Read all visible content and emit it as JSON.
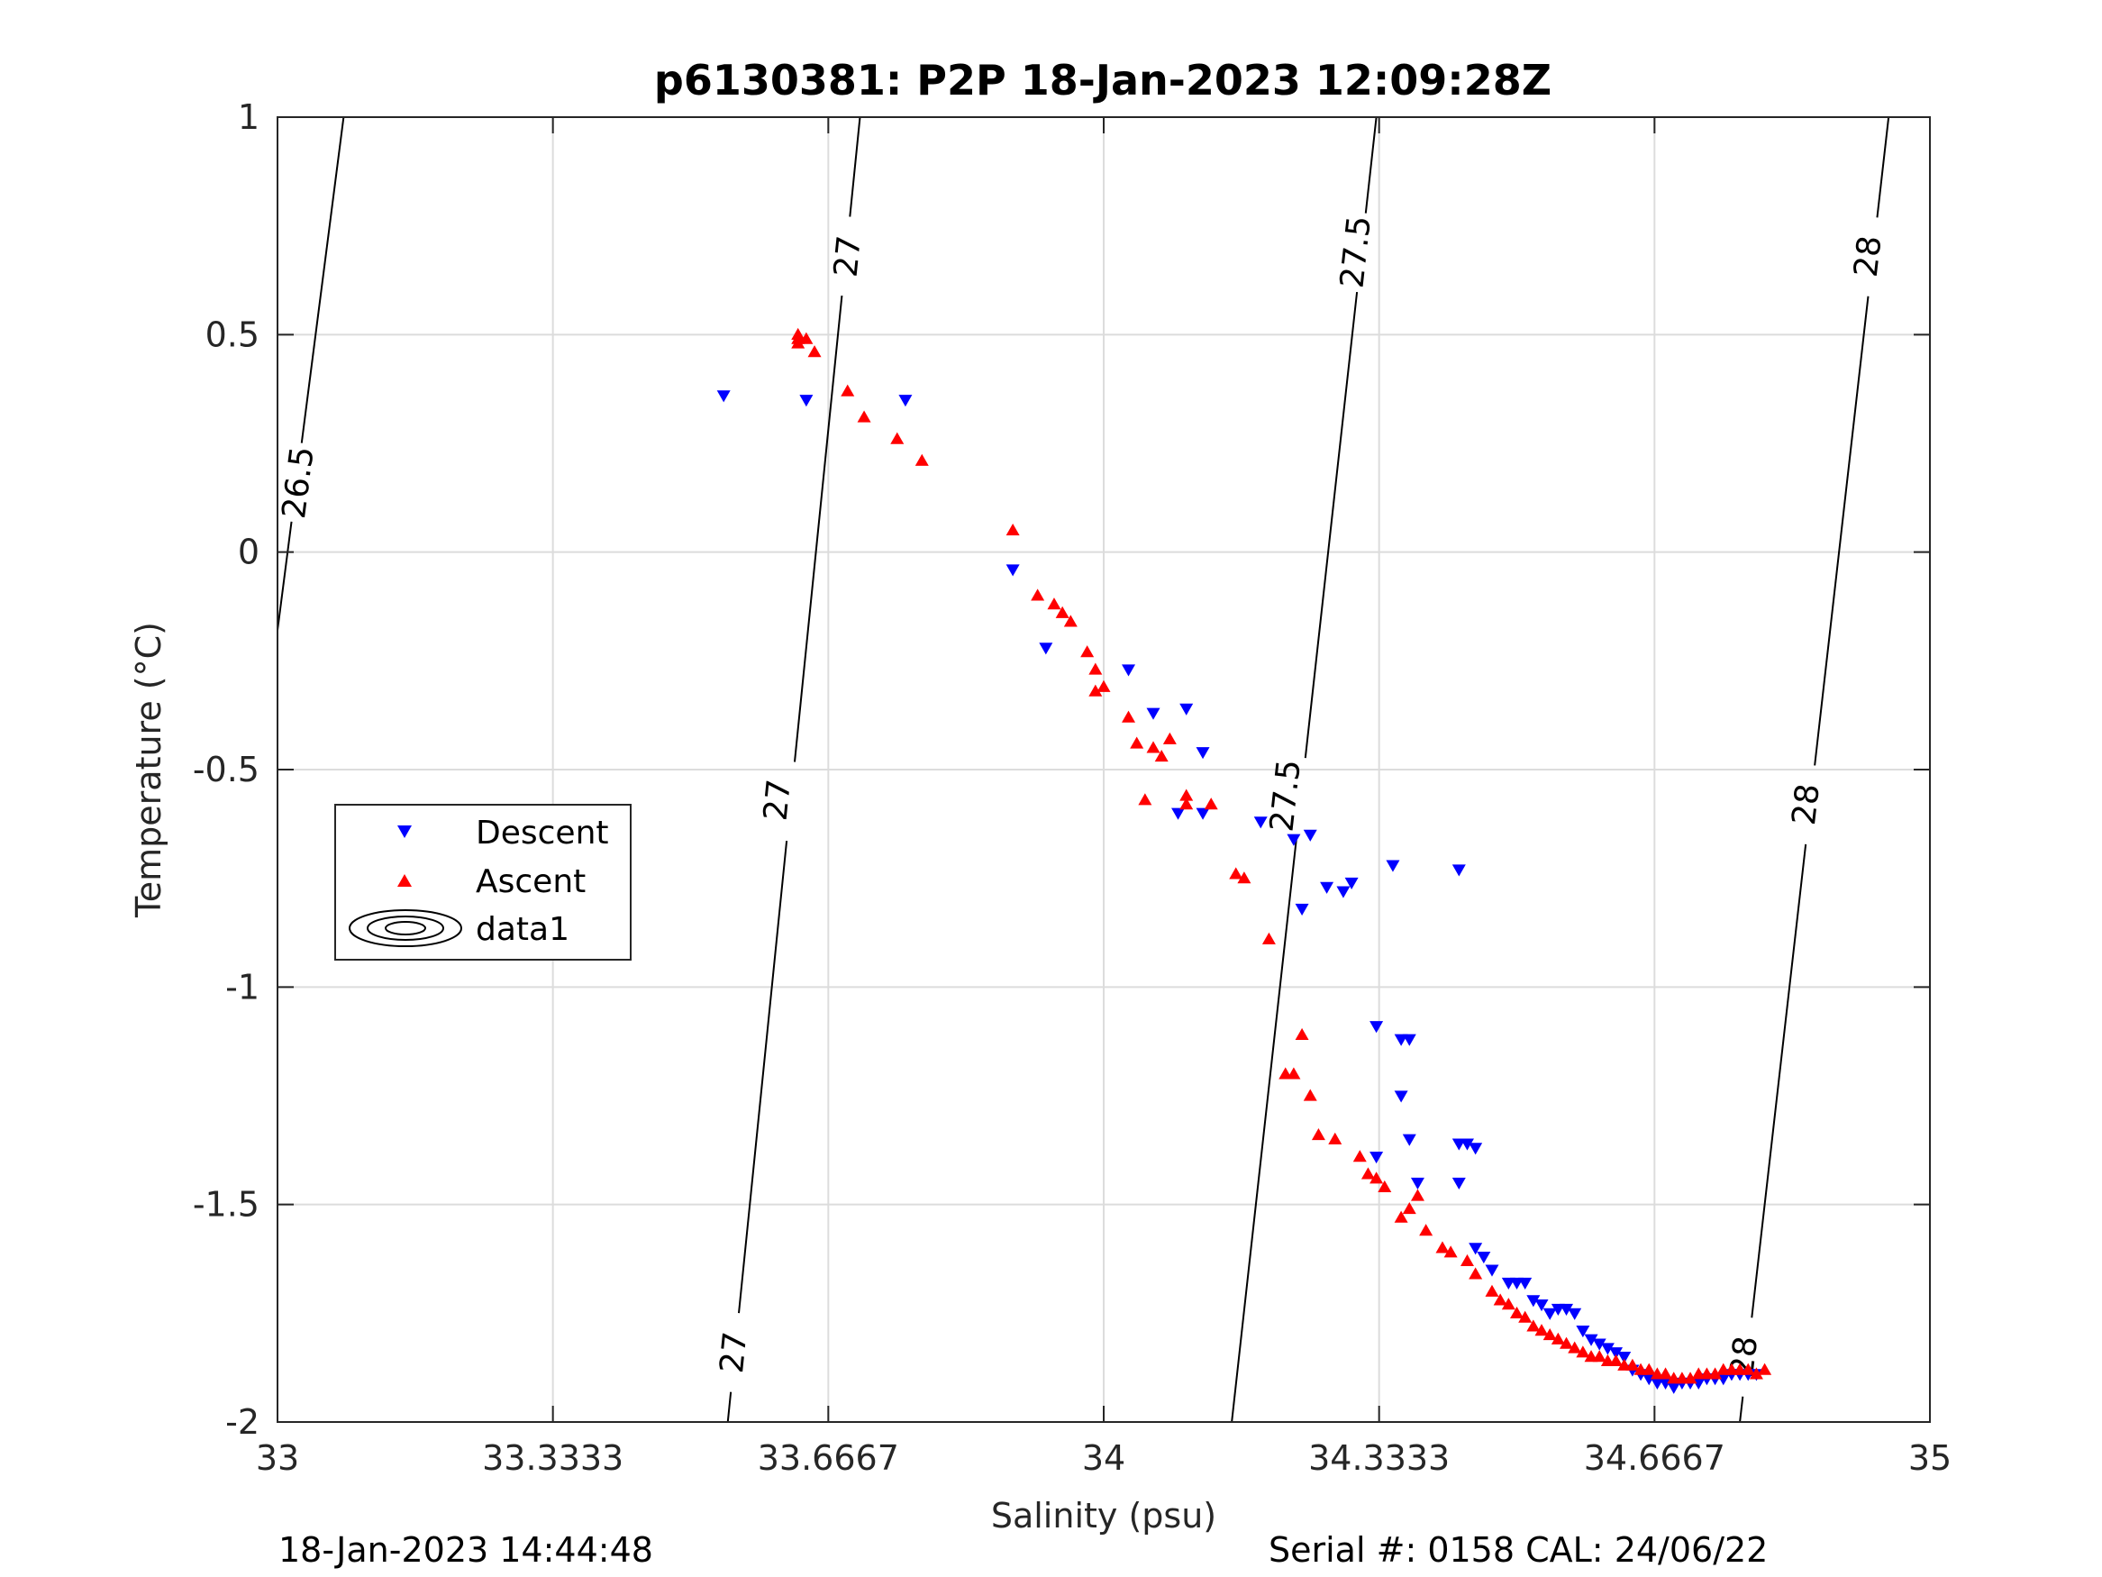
{
  "chart_data": {
    "type": "scatter",
    "title": "p6130381: P2P 18-Jan-2023 12:09:28Z",
    "xlabel": "Salinity (psu)",
    "ylabel": "Temperature (°C)",
    "xlim": [
      33,
      35
    ],
    "ylim": [
      -2,
      1
    ],
    "xticks": [
      "33",
      "33.3333",
      "33.6667",
      "34",
      "34.3333",
      "34.6667",
      "35"
    ],
    "yticks": [
      "1",
      "0.5",
      "0",
      "-0.5",
      "-1",
      "-1.5",
      "-2"
    ],
    "grid": true,
    "legend": {
      "position": "middle-left",
      "entries": [
        {
          "label": "Descent",
          "marker": "down-triangle",
          "color": "#0000ff"
        },
        {
          "label": "Ascent",
          "marker": "up-triangle",
          "color": "#ff0000"
        },
        {
          "label": "data1",
          "marker": "contour-ellipses",
          "color": "#000000"
        }
      ]
    },
    "series": [
      {
        "name": "Descent",
        "marker": "down-triangle",
        "color": "#0000ff",
        "points": [
          [
            33.54,
            0.36
          ],
          [
            33.64,
            0.35
          ],
          [
            33.76,
            0.35
          ],
          [
            33.89,
            -0.04
          ],
          [
            33.93,
            -0.22
          ],
          [
            34.03,
            -0.27
          ],
          [
            34.06,
            -0.37
          ],
          [
            34.1,
            -0.36
          ],
          [
            34.09,
            -0.6
          ],
          [
            34.12,
            -0.46
          ],
          [
            34.12,
            -0.6
          ],
          [
            34.19,
            -0.62
          ],
          [
            34.23,
            -0.66
          ],
          [
            34.24,
            -0.82
          ],
          [
            34.25,
            -0.65
          ],
          [
            34.27,
            -0.77
          ],
          [
            34.29,
            -0.78
          ],
          [
            34.3,
            -0.76
          ],
          [
            34.35,
            -0.72
          ],
          [
            34.43,
            -0.73
          ],
          [
            34.33,
            -1.09
          ],
          [
            34.36,
            -1.12
          ],
          [
            34.37,
            -1.12
          ],
          [
            34.36,
            -1.25
          ],
          [
            34.37,
            -1.35
          ],
          [
            34.33,
            -1.39
          ],
          [
            34.38,
            -1.45
          ],
          [
            34.43,
            -1.36
          ],
          [
            34.44,
            -1.36
          ],
          [
            34.45,
            -1.37
          ],
          [
            34.43,
            -1.45
          ],
          [
            34.45,
            -1.6
          ],
          [
            34.46,
            -1.62
          ],
          [
            34.47,
            -1.65
          ],
          [
            34.49,
            -1.68
          ],
          [
            34.5,
            -1.68
          ],
          [
            34.51,
            -1.68
          ],
          [
            34.52,
            -1.72
          ],
          [
            34.53,
            -1.73
          ],
          [
            34.54,
            -1.75
          ],
          [
            34.55,
            -1.74
          ],
          [
            34.56,
            -1.74
          ],
          [
            34.57,
            -1.75
          ],
          [
            34.58,
            -1.79
          ],
          [
            34.59,
            -1.81
          ],
          [
            34.6,
            -1.82
          ],
          [
            34.61,
            -1.83
          ],
          [
            34.62,
            -1.84
          ],
          [
            34.63,
            -1.85
          ],
          [
            34.64,
            -1.88
          ],
          [
            34.65,
            -1.89
          ],
          [
            34.66,
            -1.9
          ],
          [
            34.67,
            -1.91
          ],
          [
            34.68,
            -1.91
          ],
          [
            34.69,
            -1.92
          ],
          [
            34.7,
            -1.91
          ],
          [
            34.71,
            -1.91
          ],
          [
            34.72,
            -1.91
          ],
          [
            34.73,
            -1.9
          ],
          [
            34.74,
            -1.9
          ],
          [
            34.75,
            -1.9
          ],
          [
            34.76,
            -1.89
          ],
          [
            34.77,
            -1.89
          ],
          [
            34.78,
            -1.89
          ],
          [
            34.79,
            -1.89
          ]
        ]
      },
      {
        "name": "Ascent",
        "marker": "up-triangle",
        "color": "#ff0000",
        "points": [
          [
            33.63,
            0.5
          ],
          [
            33.63,
            0.49
          ],
          [
            33.63,
            0.48
          ],
          [
            33.64,
            0.49
          ],
          [
            33.65,
            0.46
          ],
          [
            33.69,
            0.37
          ],
          [
            33.71,
            0.31
          ],
          [
            33.75,
            0.26
          ],
          [
            33.78,
            0.21
          ],
          [
            33.89,
            0.05
          ],
          [
            33.92,
            -0.1
          ],
          [
            33.94,
            -0.12
          ],
          [
            33.95,
            -0.14
          ],
          [
            33.96,
            -0.16
          ],
          [
            33.98,
            -0.23
          ],
          [
            33.99,
            -0.27
          ],
          [
            33.99,
            -0.32
          ],
          [
            34.0,
            -0.31
          ],
          [
            34.03,
            -0.38
          ],
          [
            34.04,
            -0.44
          ],
          [
            34.06,
            -0.45
          ],
          [
            34.07,
            -0.47
          ],
          [
            34.08,
            -0.43
          ],
          [
            34.05,
            -0.57
          ],
          [
            34.1,
            -0.56
          ],
          [
            34.1,
            -0.58
          ],
          [
            34.13,
            -0.58
          ],
          [
            34.16,
            -0.74
          ],
          [
            34.17,
            -0.75
          ],
          [
            34.2,
            -0.89
          ],
          [
            34.22,
            -1.2
          ],
          [
            34.23,
            -1.2
          ],
          [
            34.24,
            -1.11
          ],
          [
            34.25,
            -1.25
          ],
          [
            34.26,
            -1.34
          ],
          [
            34.28,
            -1.35
          ],
          [
            34.31,
            -1.39
          ],
          [
            34.32,
            -1.43
          ],
          [
            34.33,
            -1.44
          ],
          [
            34.34,
            -1.46
          ],
          [
            34.36,
            -1.53
          ],
          [
            34.37,
            -1.51
          ],
          [
            34.38,
            -1.48
          ],
          [
            34.39,
            -1.56
          ],
          [
            34.41,
            -1.6
          ],
          [
            34.42,
            -1.61
          ],
          [
            34.44,
            -1.63
          ],
          [
            34.45,
            -1.66
          ],
          [
            34.47,
            -1.7
          ],
          [
            34.48,
            -1.72
          ],
          [
            34.49,
            -1.73
          ],
          [
            34.5,
            -1.75
          ],
          [
            34.51,
            -1.76
          ],
          [
            34.52,
            -1.78
          ],
          [
            34.53,
            -1.79
          ],
          [
            34.54,
            -1.8
          ],
          [
            34.55,
            -1.81
          ],
          [
            34.56,
            -1.82
          ],
          [
            34.57,
            -1.83
          ],
          [
            34.58,
            -1.84
          ],
          [
            34.59,
            -1.85
          ],
          [
            34.6,
            -1.85
          ],
          [
            34.61,
            -1.86
          ],
          [
            34.62,
            -1.86
          ],
          [
            34.63,
            -1.87
          ],
          [
            34.64,
            -1.87
          ],
          [
            34.65,
            -1.88
          ],
          [
            34.66,
            -1.88
          ],
          [
            34.67,
            -1.89
          ],
          [
            34.68,
            -1.89
          ],
          [
            34.69,
            -1.9
          ],
          [
            34.7,
            -1.9
          ],
          [
            34.71,
            -1.9
          ],
          [
            34.72,
            -1.89
          ],
          [
            34.73,
            -1.89
          ],
          [
            34.74,
            -1.89
          ],
          [
            34.75,
            -1.88
          ],
          [
            34.76,
            -1.88
          ],
          [
            34.77,
            -1.88
          ],
          [
            34.78,
            -1.88
          ],
          [
            34.79,
            -1.89
          ],
          [
            34.8,
            -1.88
          ]
        ]
      }
    ],
    "contours": [
      {
        "level": "26.5",
        "line": [
          [
            33.0,
            -0.18
          ],
          [
            33.08,
            1.0
          ]
        ],
        "labels": [
          {
            "text": "26.5",
            "x": 33.025,
            "y": 0.16
          }
        ]
      },
      {
        "level": "27",
        "line": [
          [
            33.545,
            -2.0
          ],
          [
            33.705,
            1.0
          ]
        ],
        "labels": [
          {
            "text": "27",
            "x": 33.69,
            "y": 0.68
          },
          {
            "text": "27",
            "x": 33.605,
            "y": -0.57
          },
          {
            "text": "27",
            "x": 33.552,
            "y": -1.84
          }
        ]
      },
      {
        "level": "27.5",
        "line": [
          [
            34.155,
            -2.0
          ],
          [
            34.33,
            1.0
          ]
        ],
        "labels": [
          {
            "text": "27.5",
            "x": 34.305,
            "y": 0.69
          },
          {
            "text": "27.5",
            "x": 34.22,
            "y": -0.56
          }
        ]
      },
      {
        "level": "28",
        "line": [
          [
            34.77,
            -2.0
          ],
          [
            34.95,
            1.0
          ]
        ],
        "labels": [
          {
            "text": "28",
            "x": 34.925,
            "y": 0.68
          },
          {
            "text": "28",
            "x": 34.85,
            "y": -0.58
          },
          {
            "text": "28",
            "x": 34.775,
            "y": -1.85
          }
        ]
      }
    ]
  },
  "footer": {
    "timestamp": "18-Jan-2023 14:44:48",
    "serial": "Serial #: 0158  CAL: 24/06/22"
  }
}
